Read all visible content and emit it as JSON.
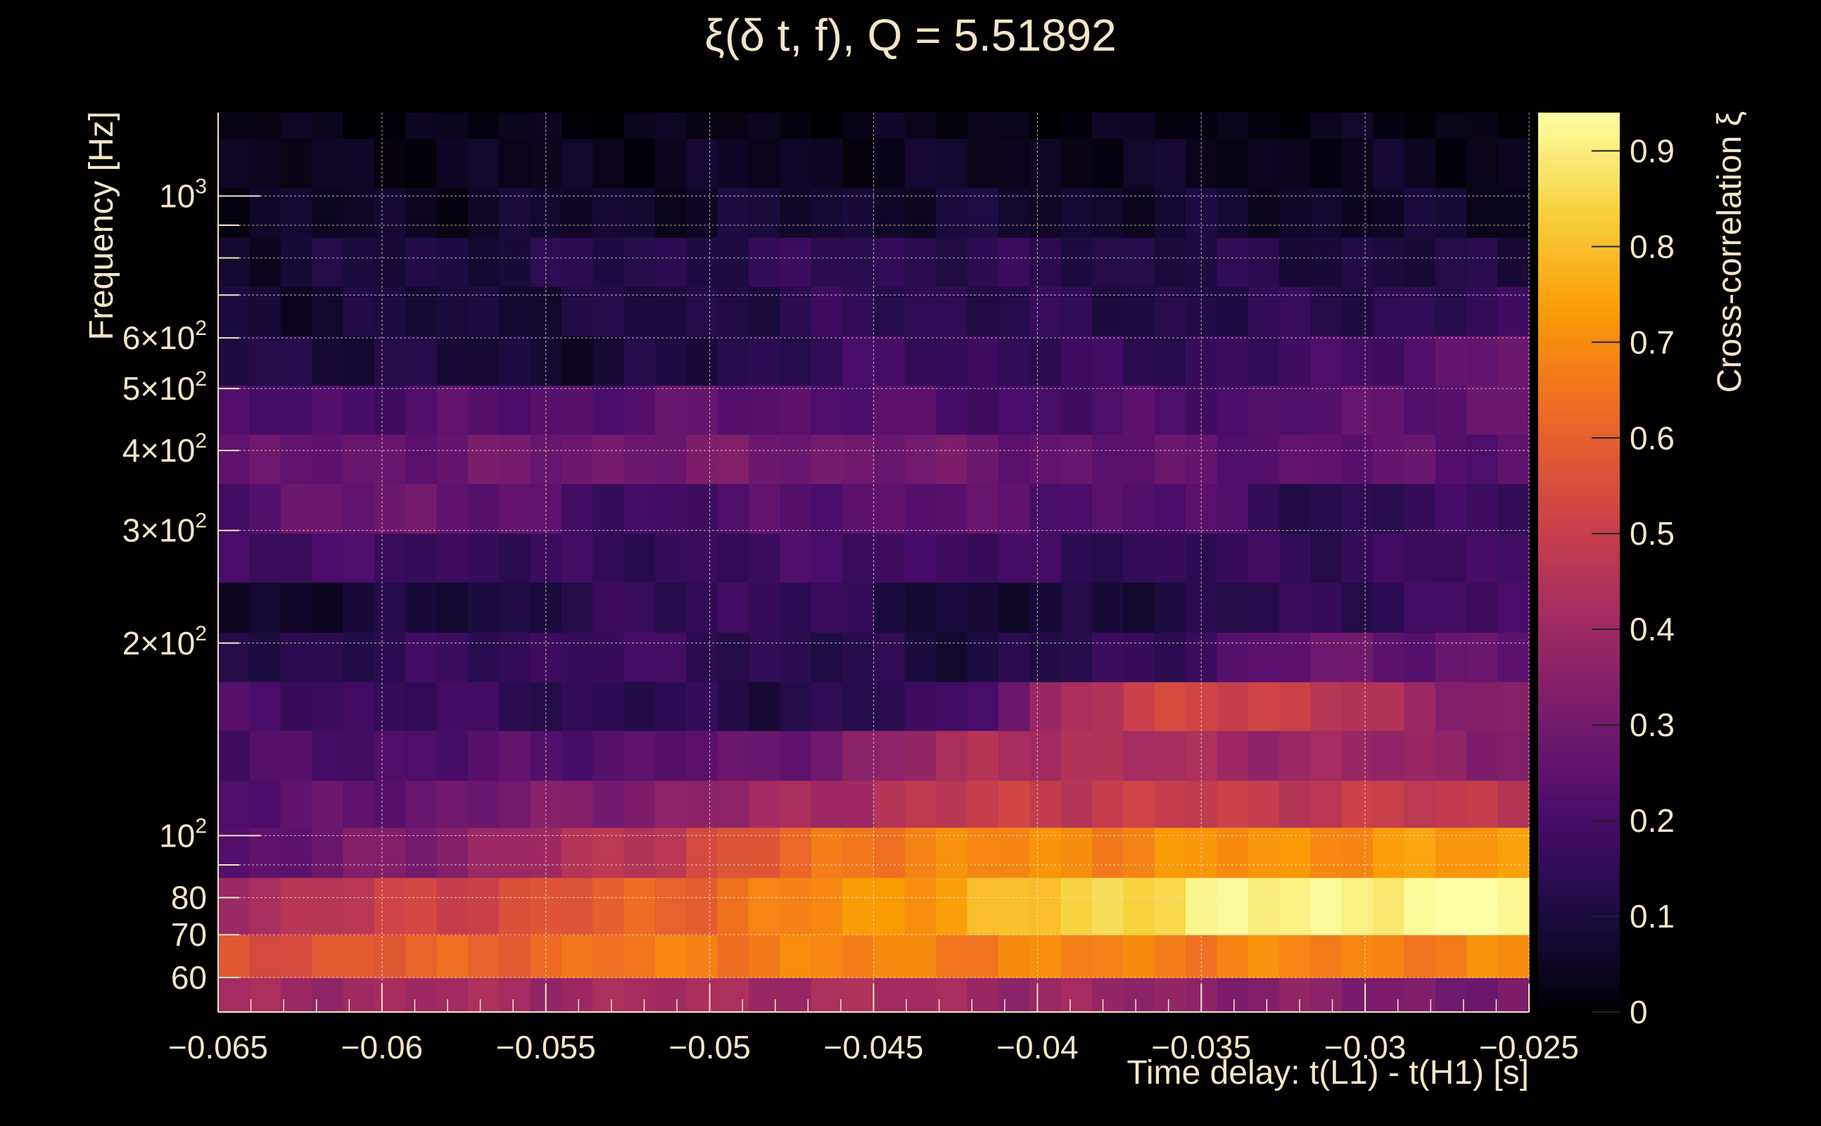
{
  "chart_data": {
    "type": "heatmap",
    "title": "ξ(δ t, f), Q = 5.51892",
    "xlabel": "Time delay: t(L1) - t(H1) [s]",
    "ylabel": "Frequency [Hz]",
    "colorbar_label": "Cross-correlation ξ",
    "xlim": [
      -0.065,
      -0.025
    ],
    "ylim": [
      53,
      1350
    ],
    "yscale": "log",
    "clim": [
      0,
      0.94
    ],
    "grid": true,
    "colormap": [
      "#000004",
      "#1b0c41",
      "#4a0c6b",
      "#781c6d",
      "#a52c60",
      "#cf4446",
      "#ed6925",
      "#fb9b06",
      "#f7d13d",
      "#fcffa4"
    ],
    "x_ticks": [
      {
        "v": -0.065,
        "label": "−0.065"
      },
      {
        "v": -0.06,
        "label": "−0.06"
      },
      {
        "v": -0.055,
        "label": "−0.055"
      },
      {
        "v": -0.05,
        "label": "−0.05"
      },
      {
        "v": -0.045,
        "label": "−0.045"
      },
      {
        "v": -0.04,
        "label": "−0.04"
      },
      {
        "v": -0.035,
        "label": "−0.035"
      },
      {
        "v": -0.03,
        "label": "−0.03"
      },
      {
        "v": -0.025,
        "label": "−0.025"
      }
    ],
    "y_ticks": [
      {
        "v": 60,
        "base": "60",
        "exp": ""
      },
      {
        "v": 70,
        "base": "70",
        "exp": ""
      },
      {
        "v": 80,
        "base": "80",
        "exp": ""
      },
      {
        "v": 100,
        "base": "10",
        "exp": "2"
      },
      {
        "v": 200,
        "base": "2×10",
        "exp": "2"
      },
      {
        "v": 300,
        "base": "3×10",
        "exp": "2"
      },
      {
        "v": 400,
        "base": "4×10",
        "exp": "2"
      },
      {
        "v": 500,
        "base": "5×10",
        "exp": "2"
      },
      {
        "v": 600,
        "base": "6×10",
        "exp": "2"
      },
      {
        "v": 1000,
        "base": "10",
        "exp": "3"
      }
    ],
    "colorbar_ticks": [
      {
        "v": 0,
        "label": "0"
      },
      {
        "v": 0.1,
        "label": "0.1"
      },
      {
        "v": 0.2,
        "label": "0.2"
      },
      {
        "v": 0.3,
        "label": "0.3"
      },
      {
        "v": 0.4,
        "label": "0.4"
      },
      {
        "v": 0.5,
        "label": "0.5"
      },
      {
        "v": 0.6,
        "label": "0.6"
      },
      {
        "v": 0.7,
        "label": "0.7"
      },
      {
        "v": 0.8,
        "label": "0.8"
      },
      {
        "v": 0.9,
        "label": "0.9"
      }
    ],
    "x_bins": 42,
    "y_edges": [
      53,
      60,
      70,
      86,
      103,
      122,
      146,
      174,
      208,
      249,
      297,
      355,
      424,
      506,
      605,
      722,
      862,
      1030,
      1230,
      1350
    ],
    "rows": [
      {
        "f_low": 53,
        "f_high": 60,
        "profile": [
          [
            0,
            0.4
          ],
          [
            0.5,
            0.42
          ],
          [
            1,
            0.3
          ]
        ]
      },
      {
        "f_low": 60,
        "f_high": 70,
        "profile": [
          [
            0,
            0.55
          ],
          [
            0.4,
            0.68
          ],
          [
            1,
            0.68
          ]
        ]
      },
      {
        "f_low": 70,
        "f_high": 86,
        "profile": [
          [
            0,
            0.42
          ],
          [
            0.35,
            0.62
          ],
          [
            0.55,
            0.75
          ],
          [
            0.75,
            0.9
          ],
          [
            1,
            0.94
          ]
        ]
      },
      {
        "f_low": 86,
        "f_high": 103,
        "profile": [
          [
            0,
            0.22
          ],
          [
            0.3,
            0.45
          ],
          [
            0.5,
            0.68
          ],
          [
            1,
            0.73
          ]
        ]
      },
      {
        "f_low": 103,
        "f_high": 122,
        "profile": [
          [
            0,
            0.22
          ],
          [
            0.35,
            0.35
          ],
          [
            0.6,
            0.5
          ],
          [
            1,
            0.48
          ]
        ]
      },
      {
        "f_low": 122,
        "f_high": 146,
        "profile": [
          [
            0,
            0.2
          ],
          [
            0.4,
            0.25
          ],
          [
            0.6,
            0.45
          ],
          [
            1,
            0.35
          ]
        ]
      },
      {
        "f_low": 146,
        "f_high": 174,
        "profile": [
          [
            0,
            0.2
          ],
          [
            0.4,
            0.12
          ],
          [
            0.55,
            0.15
          ],
          [
            0.65,
            0.42
          ],
          [
            0.75,
            0.55
          ],
          [
            0.9,
            0.42
          ],
          [
            1,
            0.3
          ]
        ]
      },
      {
        "f_low": 174,
        "f_high": 208,
        "profile": [
          [
            0,
            0.12
          ],
          [
            0.3,
            0.18
          ],
          [
            0.55,
            0.1
          ],
          [
            0.7,
            0.15
          ],
          [
            0.85,
            0.28
          ],
          [
            1,
            0.25
          ]
        ]
      },
      {
        "f_low": 208,
        "f_high": 249,
        "profile": [
          [
            0,
            0.06
          ],
          [
            0.2,
            0.1
          ],
          [
            0.4,
            0.18
          ],
          [
            0.6,
            0.07
          ],
          [
            0.75,
            0.12
          ],
          [
            1,
            0.2
          ]
        ]
      },
      {
        "f_low": 249,
        "f_high": 297,
        "profile": [
          [
            0,
            0.2
          ],
          [
            0.3,
            0.15
          ],
          [
            0.5,
            0.2
          ],
          [
            0.7,
            0.15
          ],
          [
            1,
            0.18
          ]
        ]
      },
      {
        "f_low": 297,
        "f_high": 355,
        "profile": [
          [
            0,
            0.22
          ],
          [
            0.15,
            0.3
          ],
          [
            0.3,
            0.18
          ],
          [
            0.5,
            0.25
          ],
          [
            0.75,
            0.22
          ],
          [
            0.85,
            0.12
          ],
          [
            1,
            0.2
          ]
        ]
      },
      {
        "f_low": 355,
        "f_high": 424,
        "profile": [
          [
            0,
            0.25
          ],
          [
            0.3,
            0.3
          ],
          [
            0.5,
            0.3
          ],
          [
            0.7,
            0.25
          ],
          [
            1,
            0.25
          ]
        ]
      },
      {
        "f_low": 424,
        "f_high": 506,
        "profile": [
          [
            0,
            0.2
          ],
          [
            0.4,
            0.25
          ],
          [
            0.6,
            0.2
          ],
          [
            0.8,
            0.22
          ],
          [
            1,
            0.28
          ]
        ]
      },
      {
        "f_low": 506,
        "f_high": 605,
        "profile": [
          [
            0,
            0.12
          ],
          [
            0.3,
            0.08
          ],
          [
            0.5,
            0.18
          ],
          [
            0.7,
            0.15
          ],
          [
            0.85,
            0.18
          ],
          [
            1,
            0.3
          ]
        ]
      },
      {
        "f_low": 605,
        "f_high": 722,
        "profile": [
          [
            0,
            0.08
          ],
          [
            0.3,
            0.1
          ],
          [
            0.5,
            0.15
          ],
          [
            0.7,
            0.12
          ],
          [
            1,
            0.15
          ]
        ]
      },
      {
        "f_low": 722,
        "f_high": 862,
        "profile": [
          [
            0,
            0.08
          ],
          [
            0.5,
            0.15
          ],
          [
            0.7,
            0.12
          ],
          [
            1,
            0.1
          ]
        ]
      },
      {
        "f_low": 862,
        "f_high": 1030,
        "profile": [
          [
            0,
            0.05
          ],
          [
            0.5,
            0.08
          ],
          [
            1,
            0.06
          ]
        ]
      },
      {
        "f_low": 1030,
        "f_high": 1230,
        "profile": [
          [
            0,
            0.04
          ],
          [
            0.5,
            0.05
          ],
          [
            1,
            0.04
          ]
        ]
      },
      {
        "f_low": 1230,
        "f_high": 1350,
        "profile": [
          [
            0,
            0.03
          ],
          [
            1,
            0.03
          ]
        ]
      }
    ]
  }
}
